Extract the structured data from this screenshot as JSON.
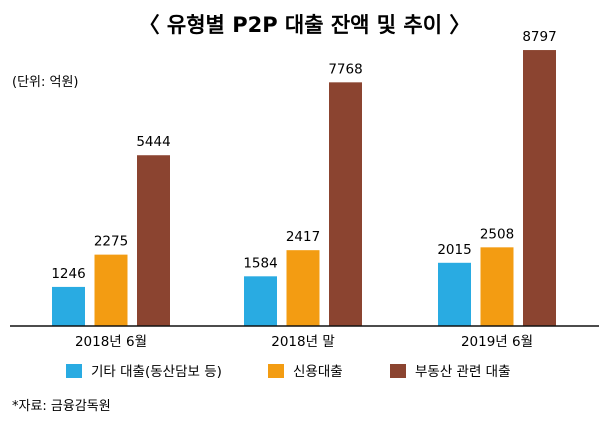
{
  "chart_data": {
    "type": "bar",
    "title": "〈 유형별 P2P 대출 잔액 및 추이 〉",
    "unit_label": "(단위: 억원)",
    "categories": [
      "2018년 6월",
      "2018년 말",
      "2019년 6월"
    ],
    "series": [
      {
        "name": "기타 대출(동산담보 등)",
        "color": "#29abe2",
        "values": [
          1246,
          1584,
          2015
        ]
      },
      {
        "name": "신용대출",
        "color": "#f39c12",
        "values": [
          2275,
          2417,
          2508
        ]
      },
      {
        "name": "부동산 관련 대출",
        "color": "#8b4430",
        "values": [
          5444,
          7768,
          8797
        ]
      }
    ],
    "ylim": [
      0,
      9500
    ],
    "grid": false,
    "legend_position": "bottom",
    "source": "*자료: 금융감독원"
  }
}
